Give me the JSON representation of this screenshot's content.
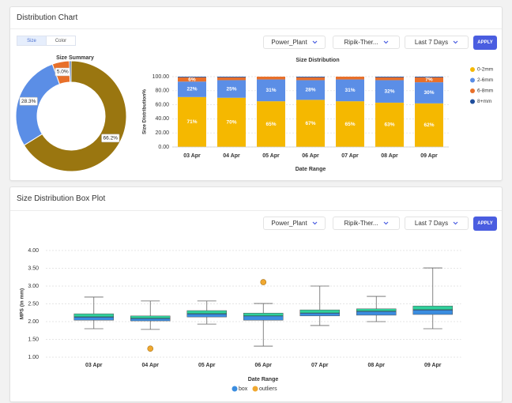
{
  "cards": [
    {
      "title": "Distribution Chart",
      "toggles": [
        "Size",
        "Color"
      ],
      "filters": [
        "Power_Plant",
        "Ripik-Ther...",
        "Last 7 Days"
      ],
      "button": "APPLY"
    },
    {
      "title": "Size Distribution Box Plot",
      "filters": [
        "Power_Plant",
        "Ripik-Ther...",
        "Last 7 Days"
      ],
      "button": "APPLY"
    }
  ],
  "chart_data": [
    {
      "type": "donut",
      "title": "Size Summary",
      "values": [
        66.2,
        28.3,
        5.0,
        0.5
      ],
      "value_labels": [
        "66.2%",
        "28.3%",
        "5.0%",
        null
      ],
      "colors": [
        "#9a7610",
        "#5b8ee6",
        "#e8702a",
        "#1f4e9c"
      ]
    },
    {
      "type": "stacked-bar",
      "title": "Size Distribution",
      "ylabel": "Size Distribution%",
      "xlabel": "Date Range",
      "categories": [
        "03 Apr",
        "04 Apr",
        "05 Apr",
        "06 Apr",
        "07 Apr",
        "08 Apr",
        "09 Apr"
      ],
      "ylim": [
        0,
        100
      ],
      "yticks": [
        {
          "value": 0,
          "label": "0.00"
        },
        {
          "value": 20,
          "label": "20.00"
        },
        {
          "value": 40,
          "label": "40.00"
        },
        {
          "value": 60,
          "label": "60.00"
        },
        {
          "value": 80,
          "label": "80.00"
        },
        {
          "value": 100,
          "label": "100.00"
        }
      ],
      "grid": true,
      "legend": "right",
      "series": [
        {
          "name": "0-2mm",
          "color": "#f5b800",
          "values": [
            71,
            70,
            65,
            67,
            65,
            63,
            62
          ],
          "value_labels": [
            "71%",
            "70%",
            "65%",
            "67%",
            "65%",
            "63%",
            "62%"
          ]
        },
        {
          "name": "2-6mm",
          "color": "#5b8ee6",
          "values": [
            22,
            25,
            31,
            28,
            31,
            32,
            30
          ],
          "value_labels": [
            "22%",
            "25%",
            "31%",
            "28%",
            "31%",
            "32%",
            "30%"
          ]
        },
        {
          "name": "6-8mm",
          "color": "#e8702a",
          "values": [
            6,
            4,
            4,
            4,
            4,
            4,
            7
          ],
          "value_labels": [
            "6%",
            null,
            null,
            null,
            null,
            null,
            "7%"
          ]
        },
        {
          "name": "8+mm",
          "color": "#1f4e9c",
          "values": [
            1,
            1,
            0,
            1,
            0,
            1,
            1
          ]
        }
      ]
    },
    {
      "type": "box",
      "ylabel": "MPS (in mm)",
      "xlabel": "Date Range",
      "categories": [
        "03 Apr",
        "04 Apr",
        "05 Apr",
        "06 Apr",
        "07 Apr",
        "08 Apr",
        "09 Apr"
      ],
      "ylim": [
        1,
        4
      ],
      "yticks": [
        {
          "value": 1,
          "label": "1.00"
        },
        {
          "value": 1.5,
          "label": "1.50"
        },
        {
          "value": 2,
          "label": "2.00"
        },
        {
          "value": 2.5,
          "label": "2.50"
        },
        {
          "value": 3,
          "label": "3.00"
        },
        {
          "value": 3.5,
          "label": "3.50"
        },
        {
          "value": 4,
          "label": "4.00"
        }
      ],
      "grid": true,
      "legend": "bottom",
      "series": [
        {
          "name": "box",
          "color": "#3b8de0",
          "upper_color": "#2fd19c",
          "min": [
            1.8,
            1.78,
            1.93,
            1.31,
            1.89,
            2.0,
            1.8
          ],
          "q1": [
            2.04,
            2.02,
            2.13,
            2.04,
            2.16,
            2.18,
            2.2
          ],
          "median": [
            2.13,
            2.09,
            2.22,
            2.16,
            2.24,
            2.29,
            2.33
          ],
          "q3": [
            2.22,
            2.16,
            2.31,
            2.24,
            2.33,
            2.36,
            2.44
          ],
          "max": [
            2.69,
            2.58,
            2.58,
            2.51,
            3.0,
            2.71,
            3.51
          ]
        },
        {
          "name": "outliers",
          "color": "#f0a830",
          "values": [
            null,
            1.24,
            null,
            3.11,
            null,
            null,
            null
          ]
        }
      ]
    }
  ]
}
